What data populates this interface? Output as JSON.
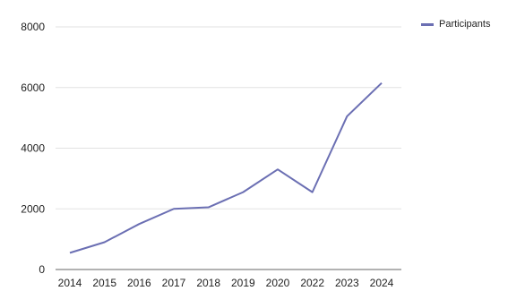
{
  "chart_data": {
    "type": "line",
    "title": "",
    "xlabel": "",
    "ylabel": "",
    "categories": [
      "2014",
      "2015",
      "2016",
      "2017",
      "2018",
      "2019",
      "2020",
      "2022",
      "2023",
      "2024"
    ],
    "series": [
      {
        "name": "Participants",
        "values": [
          550,
          900,
          1500,
          2000,
          2050,
          2550,
          3300,
          2550,
          5050,
          6150
        ],
        "color": "#6b6fb3"
      }
    ],
    "ylim": [
      0,
      8000
    ],
    "yticks": [
      0,
      2000,
      4000,
      6000,
      8000
    ],
    "grid": true,
    "legend_position": "top-right"
  }
}
